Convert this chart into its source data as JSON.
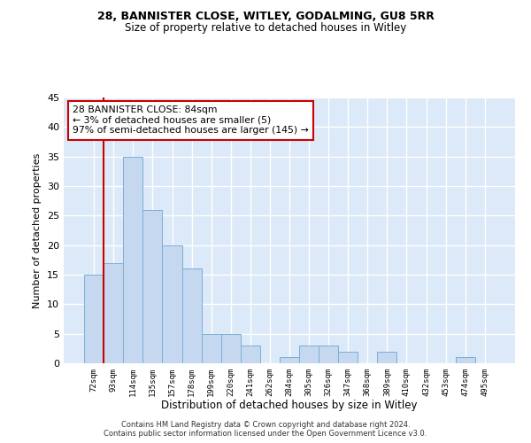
{
  "title1": "28, BANNISTER CLOSE, WITLEY, GODALMING, GU8 5RR",
  "title2": "Size of property relative to detached houses in Witley",
  "xlabel": "Distribution of detached houses by size in Witley",
  "ylabel": "Number of detached properties",
  "categories": [
    "72sqm",
    "93sqm",
    "114sqm",
    "135sqm",
    "157sqm",
    "178sqm",
    "199sqm",
    "220sqm",
    "241sqm",
    "262sqm",
    "284sqm",
    "305sqm",
    "326sqm",
    "347sqm",
    "368sqm",
    "389sqm",
    "410sqm",
    "432sqm",
    "453sqm",
    "474sqm",
    "495sqm"
  ],
  "values": [
    15,
    17,
    35,
    26,
    20,
    16,
    5,
    5,
    3,
    0,
    1,
    3,
    3,
    2,
    0,
    2,
    0,
    0,
    0,
    1,
    0
  ],
  "bar_color": "#c5d8f0",
  "bar_edge_color": "#7aafd4",
  "red_line_x": 0.5,
  "annotation_text": "28 BANNISTER CLOSE: 84sqm\n← 3% of detached houses are smaller (5)\n97% of semi-detached houses are larger (145) →",
  "annotation_box_color": "#ffffff",
  "annotation_box_edge_color": "#cc0000",
  "ylim": [
    0,
    45
  ],
  "yticks": [
    0,
    5,
    10,
    15,
    20,
    25,
    30,
    35,
    40,
    45
  ],
  "background_color": "#dce9f8",
  "grid_color": "#ffffff",
  "footer1": "Contains HM Land Registry data © Crown copyright and database right 2024.",
  "footer2": "Contains public sector information licensed under the Open Government Licence v3.0."
}
